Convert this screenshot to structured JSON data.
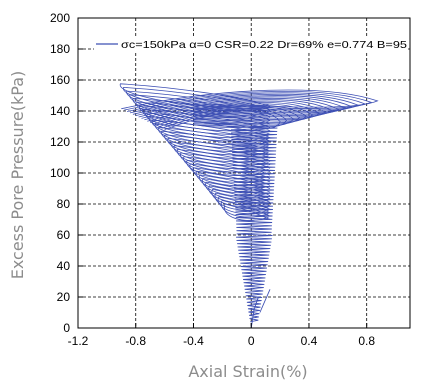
{
  "chart_data": {
    "type": "line",
    "xlabel": "Axial Strain(%)",
    "ylabel": "Excess Pore Pressure(kPa)",
    "xlim": [
      -1.2,
      1.1
    ],
    "ylim": [
      0,
      200
    ],
    "xticks": [
      -1.2,
      -0.8,
      -0.4,
      0,
      0.4,
      0.8
    ],
    "xtick_labels": [
      "-1.2",
      "-0.8",
      "-0.4",
      "0",
      "0.4",
      "0.8"
    ],
    "yticks": [
      0,
      20,
      40,
      60,
      80,
      100,
      120,
      140,
      160,
      180,
      200
    ],
    "ytick_labels": [
      "0",
      "20",
      "40",
      "60",
      "80",
      "100",
      "120",
      "140",
      "160",
      "180",
      "200"
    ],
    "grid": true,
    "grid_style": "dashed",
    "legend_position": "top-right",
    "colors": {
      "series": "#3f51b5",
      "axis": "#000000"
    },
    "series": [
      {
        "name": "σc=150kPa  α=0  CSR=0.22  Dr=69%  e=0.774  B=95",
        "description_points": {
          "x": [
            0.0,
            -0.03,
            0.06,
            -0.05,
            0.1,
            -0.07,
            0.13,
            -0.1,
            0.13,
            -0.16,
            0.14,
            -0.22,
            0.14,
            -0.3,
            0.15,
            -0.42,
            0.14,
            -0.55,
            0.14,
            -0.7,
            0.18,
            -0.82,
            0.4,
            -0.9,
            0.6,
            -0.92,
            0.78,
            -0.93,
            0.88
          ],
          "y": [
            5,
            15,
            25,
            35,
            45,
            52,
            60,
            68,
            74,
            80,
            86,
            92,
            98,
            103,
            108,
            113,
            117,
            121,
            124,
            128,
            131,
            134,
            137,
            140,
            142,
            144,
            143,
            147,
            141
          ]
        }
      }
    ]
  }
}
